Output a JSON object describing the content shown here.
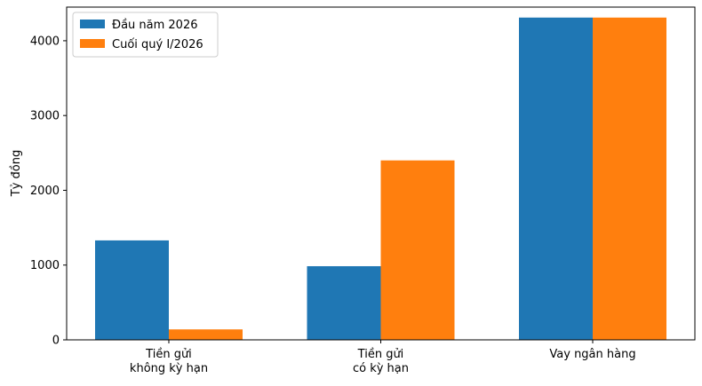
{
  "chart_data": {
    "type": "bar",
    "y_label": "Tỷ đồng",
    "categories": [
      "Tiền gửi\nkhông kỳ hạn",
      "Tiền gửi\ncó kỳ hạn",
      "Vay ngân hàng"
    ],
    "series": [
      {
        "name": "Đầu năm 2026",
        "color": "#1f77b4",
        "values": [
          1330,
          985,
          4310
        ]
      },
      {
        "name": "Cuối quý I/2026",
        "color": "#ff7f0e",
        "values": [
          140,
          2400,
          4310
        ]
      }
    ],
    "ylim": [
      0,
      4450
    ],
    "yticks": [
      0,
      1000,
      2000,
      3000,
      4000
    ],
    "legend": "upper left",
    "grid": false
  }
}
